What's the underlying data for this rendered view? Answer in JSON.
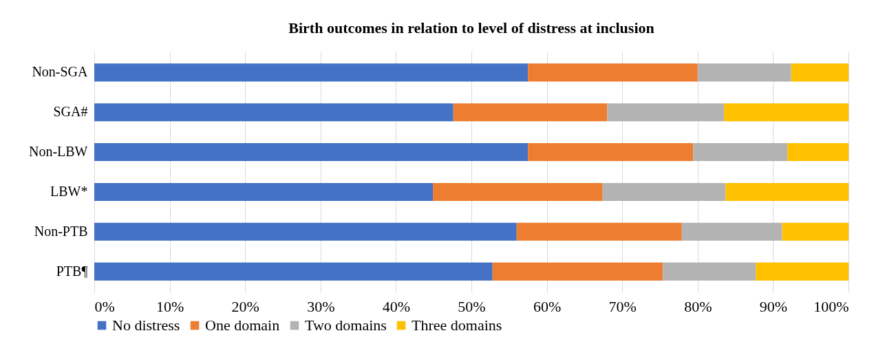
{
  "chart_data": {
    "type": "bar",
    "orientation": "horizontal",
    "stacked": true,
    "title": "Birth outcomes in relation to level of distress at inclusion",
    "categories": [
      "Non-SGA",
      "SGA#",
      "Non-LBW",
      "LBW*",
      "Non-PTB",
      "PTB¶"
    ],
    "series": [
      {
        "name": "No distress",
        "color": "#4472c4",
        "values": [
          57.5,
          47.6,
          57.5,
          44.9,
          56.0,
          52.8
        ]
      },
      {
        "name": "One domain",
        "color": "#ed7d31",
        "values": [
          22.5,
          20.4,
          21.9,
          22.5,
          21.9,
          22.6
        ]
      },
      {
        "name": "Two domains",
        "color": "#b3b3b3",
        "values": [
          12.4,
          15.5,
          12.5,
          16.3,
          13.3,
          12.3
        ]
      },
      {
        "name": "Three domains",
        "color": "#ffc000",
        "values": [
          7.6,
          16.5,
          8.1,
          16.3,
          8.8,
          12.3
        ]
      }
    ],
    "xlim": [
      0,
      100
    ],
    "xticks": [
      {
        "value": 0,
        "label": "0%"
      },
      {
        "value": 10,
        "label": "10%"
      },
      {
        "value": 20,
        "label": "20%"
      },
      {
        "value": 30,
        "label": "30%"
      },
      {
        "value": 40,
        "label": "40%"
      },
      {
        "value": 50,
        "label": "50%"
      },
      {
        "value": 60,
        "label": "60%"
      },
      {
        "value": 70,
        "label": "70%"
      },
      {
        "value": 80,
        "label": "80%"
      },
      {
        "value": 90,
        "label": "90%"
      },
      {
        "value": 100,
        "label": "100%"
      }
    ],
    "grid": "x",
    "legend": "bottom"
  }
}
